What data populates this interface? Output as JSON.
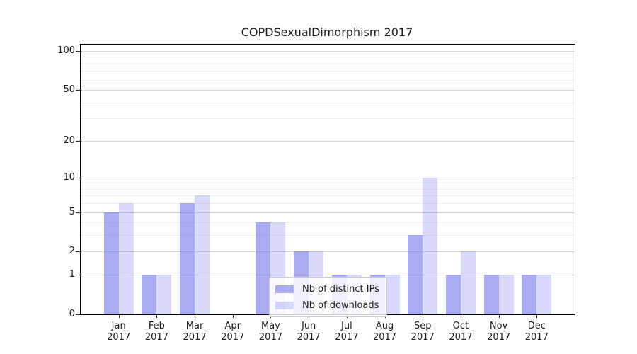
{
  "title": "COPDSexualDimorphism 2017",
  "chart_data": {
    "type": "bar",
    "title": "COPDSexualDimorphism 2017",
    "yscale": "log1p",
    "ylim": [
      0,
      112
    ],
    "grid": true,
    "legend_position": "lower-center-inside",
    "categories": [
      "Jan",
      "Feb",
      "Mar",
      "Apr",
      "May",
      "Jun",
      "Jul",
      "Aug",
      "Sep",
      "Oct",
      "Nov",
      "Dec"
    ],
    "year_label": "2017",
    "y_ticks": [
      0,
      1,
      2,
      5,
      10,
      20,
      50,
      100
    ],
    "y_minor_gridlines": [
      3,
      4,
      6,
      7,
      8,
      9,
      30,
      40,
      60,
      70,
      80,
      90
    ],
    "series": [
      {
        "name": "Nb of distinct IPs",
        "color": "rgba(102,102,230,0.55)",
        "values": [
          5,
          1,
          6,
          0,
          4,
          2,
          1,
          1,
          3,
          1,
          1,
          1
        ]
      },
      {
        "name": "Nb of downloads",
        "color": "rgba(102,102,230,0.25)",
        "values": [
          6,
          1,
          7,
          0,
          4,
          2,
          1,
          1,
          10,
          2,
          1,
          1
        ]
      }
    ],
    "colors": {
      "axis": "#000000",
      "grid_major": "#d5d5d5",
      "grid_minor": "#f0f0f0",
      "text": "#1a1a1a"
    }
  }
}
